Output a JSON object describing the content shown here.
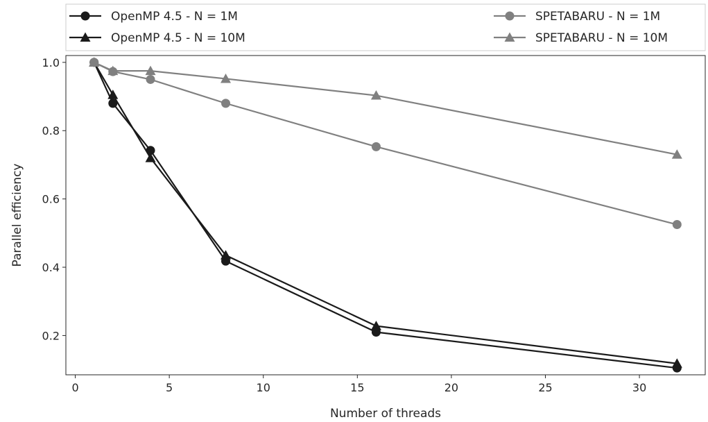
{
  "chart_data": {
    "type": "line",
    "xlabel": "Number of threads",
    "ylabel": "Parallel efficiency",
    "xlim": [
      -0.5,
      33.5
    ],
    "ylim": [
      0.085,
      1.02
    ],
    "xticks": [
      0,
      5,
      10,
      15,
      20,
      25,
      30
    ],
    "yticks": [
      0.2,
      0.4,
      0.6,
      0.8,
      1.0
    ],
    "xtick_labels": [
      "0",
      "5",
      "10",
      "15",
      "20",
      "25",
      "30"
    ],
    "ytick_labels": [
      "0.2",
      "0.4",
      "0.6",
      "0.8",
      "1.0"
    ],
    "grid": false,
    "legend_position": "top, above plot",
    "series": [
      {
        "name": "OpenMP 4.5 - N = 1M",
        "marker": "circle",
        "color": "#1a1a1a",
        "x": [
          1,
          2,
          4,
          8,
          16,
          32
        ],
        "y": [
          1.0,
          0.88,
          0.742,
          0.418,
          0.21,
          0.105
        ]
      },
      {
        "name": "OpenMP 4.5 - N = 10M",
        "marker": "triangle",
        "color": "#1a1a1a",
        "x": [
          1,
          2,
          4,
          8,
          16,
          32
        ],
        "y": [
          1.0,
          0.905,
          0.72,
          0.435,
          0.228,
          0.118
        ]
      },
      {
        "name": "SPETABARU - N = 1M",
        "marker": "circle",
        "color": "#808080",
        "x": [
          1,
          2,
          4,
          8,
          16,
          32
        ],
        "y": [
          1.0,
          0.973,
          0.95,
          0.88,
          0.753,
          0.525
        ]
      },
      {
        "name": "SPETABARU - N = 10M",
        "marker": "triangle",
        "color": "#808080",
        "x": [
          1,
          2,
          4,
          8,
          16,
          32
        ],
        "y": [
          1.0,
          0.975,
          0.975,
          0.952,
          0.903,
          0.73
        ]
      }
    ]
  }
}
